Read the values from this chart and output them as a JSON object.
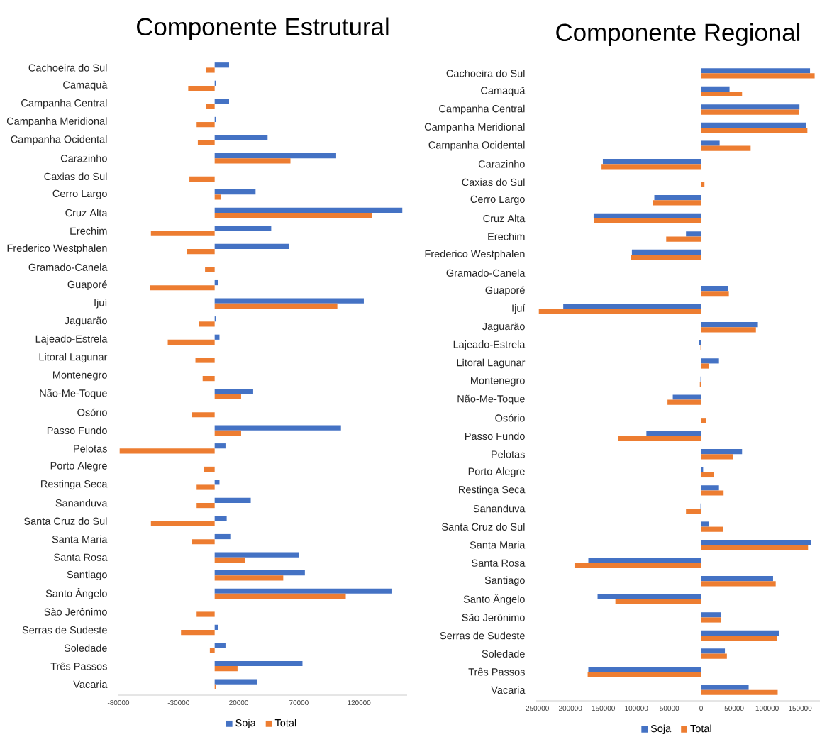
{
  "chart_data": [
    {
      "type": "bar",
      "orientation": "horizontal",
      "title": "Componente Estrutural",
      "categories": [
        "Cachoeira do Sul",
        "Camaquã",
        "Campanha Central",
        "Campanha Meridional",
        "Campanha Ocidental",
        "Carazinho",
        "Caxias do Sul",
        "Cerro Largo",
        "Cruz Alta",
        "Erechim",
        "Frederico Westphalen",
        "Gramado-Canela",
        "Guaporé",
        "Ijuí",
        "Jaguarão",
        "Lajeado-Estrela",
        "Litoral Lagunar",
        "Montenegro",
        "Não-Me-Toque",
        "Osório",
        "Passo Fundo",
        "Pelotas",
        "Porto Alegre",
        "Restinga Seca",
        "Sananduva",
        "Santa Cruz do Sul",
        "Santa Maria",
        "Santa Rosa",
        "Santiago",
        "Santo Ângelo",
        "São Jerônimo",
        "Serras de Sudeste",
        "Soledade",
        "Três Passos",
        "Vacaria"
      ],
      "series": [
        {
          "name": "Soja",
          "color": "#4472c4",
          "values": [
            12000,
            1000,
            12000,
            1000,
            44000,
            101000,
            0,
            34000,
            156000,
            47000,
            62000,
            0,
            3000,
            124000,
            1000,
            4000,
            0,
            0,
            32000,
            0,
            105000,
            9000,
            0,
            4000,
            30000,
            10000,
            13000,
            70000,
            75000,
            147000,
            0,
            3000,
            9000,
            73000,
            35000
          ]
        },
        {
          "name": "Total",
          "color": "#ed7d31",
          "values": [
            -7000,
            -22000,
            -7000,
            -15000,
            -14000,
            63000,
            -21000,
            5000,
            131000,
            -53000,
            -23000,
            -8000,
            -54000,
            102000,
            -13000,
            -39000,
            -16000,
            -10000,
            22000,
            -19000,
            22000,
            -79000,
            -9000,
            -15000,
            -15000,
            -53000,
            -19000,
            25000,
            57000,
            109000,
            -15000,
            -28000,
            -4000,
            19000,
            1000
          ]
        }
      ],
      "xlim": [
        -80000,
        160000
      ],
      "xticks": [
        -80000,
        -30000,
        20000,
        70000,
        120000
      ],
      "legend": "bottom"
    },
    {
      "type": "bar",
      "orientation": "horizontal",
      "title": "Componente Regional",
      "categories": [
        "Cachoeira do Sul",
        "Camaquã",
        "Campanha Central",
        "Campanha Meridional",
        "Campanha Ocidental",
        "Carazinho",
        "Caxias do Sul",
        "Cerro Largo",
        "Cruz Alta",
        "Erechim",
        "Frederico Westphalen",
        "Gramado-Canela",
        "Guaporé",
        "Ijuí",
        "Jaguarão",
        "Lajeado-Estrela",
        "Litoral Lagunar",
        "Montenegro",
        "Não-Me-Toque",
        "Osório",
        "Passo Fundo",
        "Pelotas",
        "Porto Alegre",
        "Restinga Seca",
        "Sananduva",
        "Santa Cruz do Sul",
        "Santa Maria",
        "Santa Rosa",
        "Santiago",
        "Santo Ângelo",
        "São Jerônimo",
        "Serras de Sudeste",
        "Soledade",
        "Três Passos",
        "Vacaria"
      ],
      "series": [
        {
          "name": "Soja",
          "color": "#4472c4",
          "values": [
            165000,
            43000,
            149000,
            159000,
            28000,
            -149000,
            0,
            -71000,
            -163000,
            -23000,
            -105000,
            0,
            41000,
            -209000,
            86000,
            -3000,
            27000,
            -1000,
            -43000,
            0,
            -83000,
            62000,
            3000,
            27000,
            -1000,
            12000,
            167000,
            -171000,
            109000,
            -157000,
            30000,
            118000,
            36000,
            -171000,
            72000
          ]
        },
        {
          "name": "Total",
          "color": "#ed7d31",
          "values": [
            172000,
            62000,
            148000,
            161000,
            75000,
            -151000,
            5000,
            -73000,
            -162000,
            -53000,
            -106000,
            0,
            42000,
            -246000,
            83000,
            -1000,
            12000,
            -2000,
            -51000,
            8000,
            -126000,
            48000,
            19000,
            34000,
            -23000,
            33000,
            162000,
            -192000,
            113000,
            -130000,
            30000,
            115000,
            39000,
            -172000,
            116000
          ]
        }
      ],
      "xlim": [
        -250000,
        180000
      ],
      "xticks": [
        -250000,
        -200000,
        -150000,
        -100000,
        -50000,
        0,
        50000,
        100000,
        150000
      ],
      "legend": "bottom"
    }
  ]
}
